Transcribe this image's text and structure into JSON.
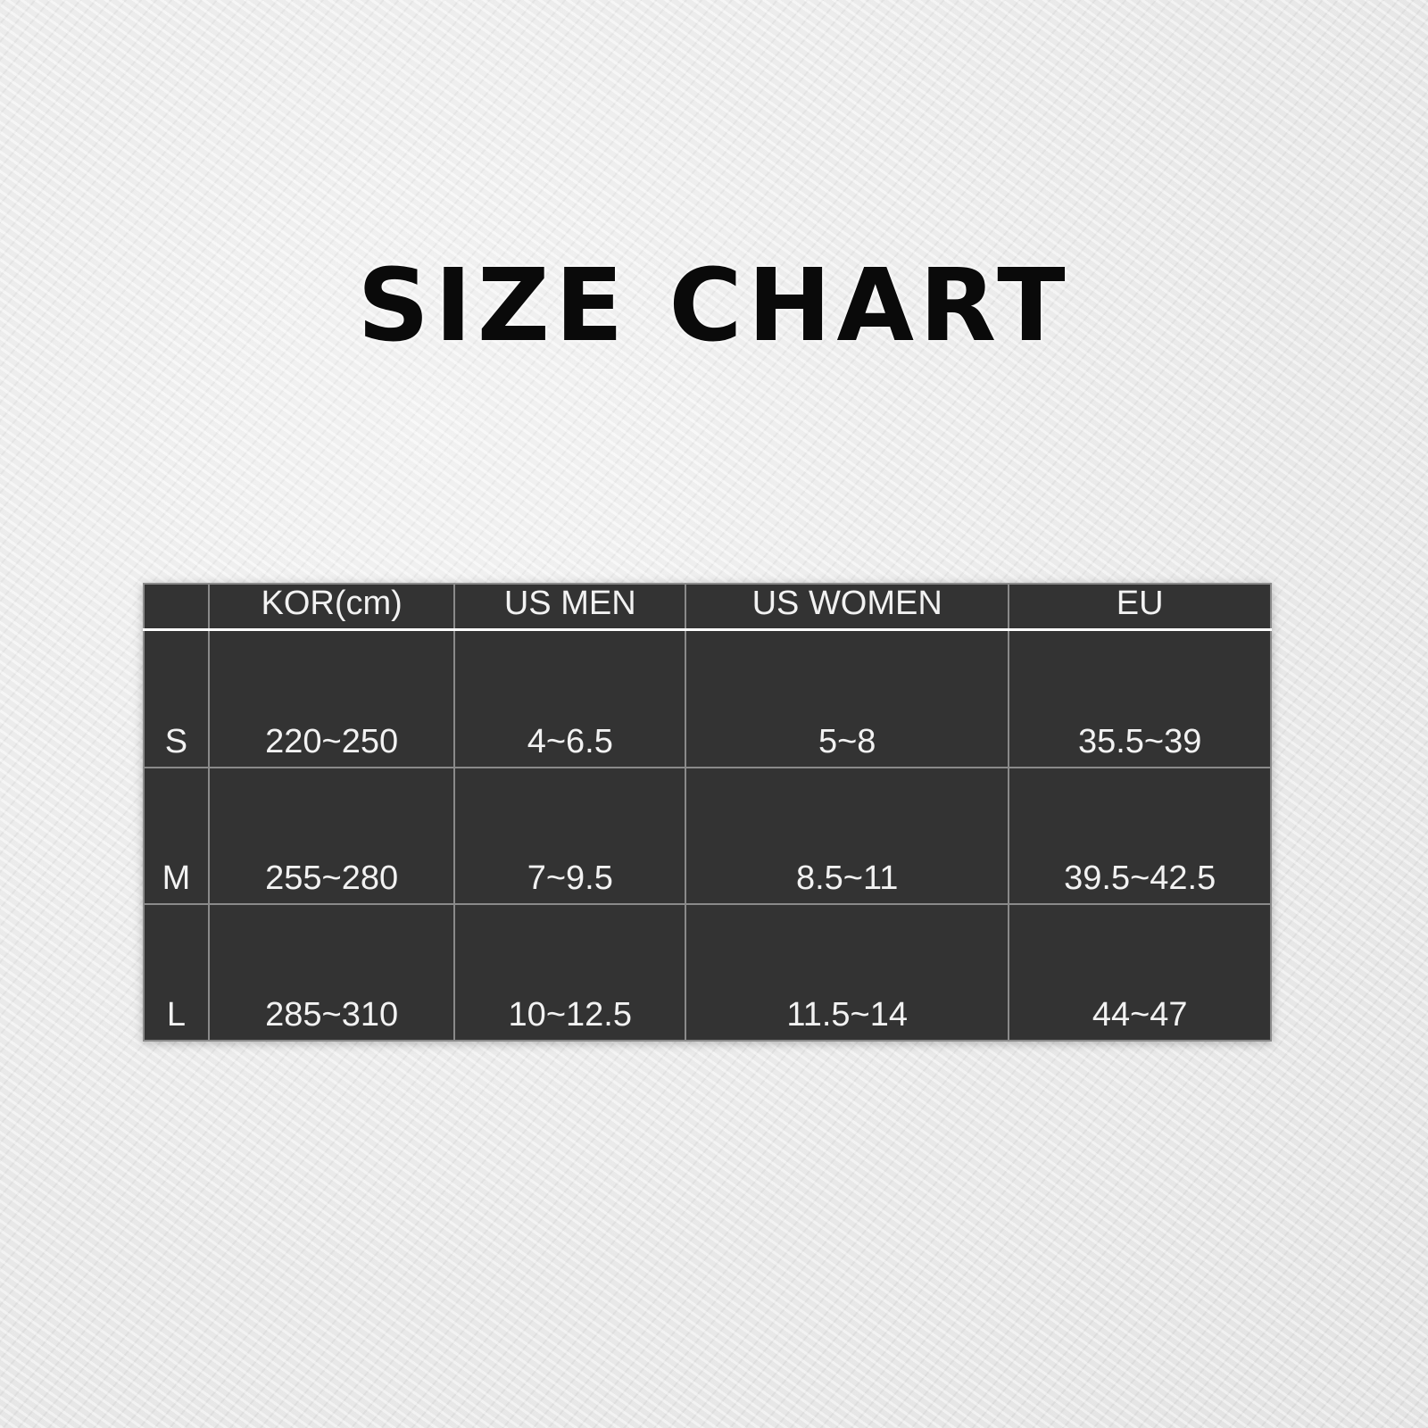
{
  "title": "SIZE CHART",
  "table": {
    "headers": [
      "",
      "KOR(cm)",
      "US MEN",
      "US WOMEN",
      "EU"
    ],
    "rows": [
      [
        "S",
        "220~250",
        "4~6.5",
        "5~8",
        "35.5~39"
      ],
      [
        "M",
        "255~280",
        "7~9.5",
        "8.5~11",
        "39.5~42.5"
      ],
      [
        "L",
        "285~310",
        "10~12.5",
        "11.5~14",
        "44~47"
      ]
    ]
  },
  "colors": {
    "table_bg": "#333333",
    "text": "#f2f2f2",
    "title": "#0a0a0a"
  }
}
